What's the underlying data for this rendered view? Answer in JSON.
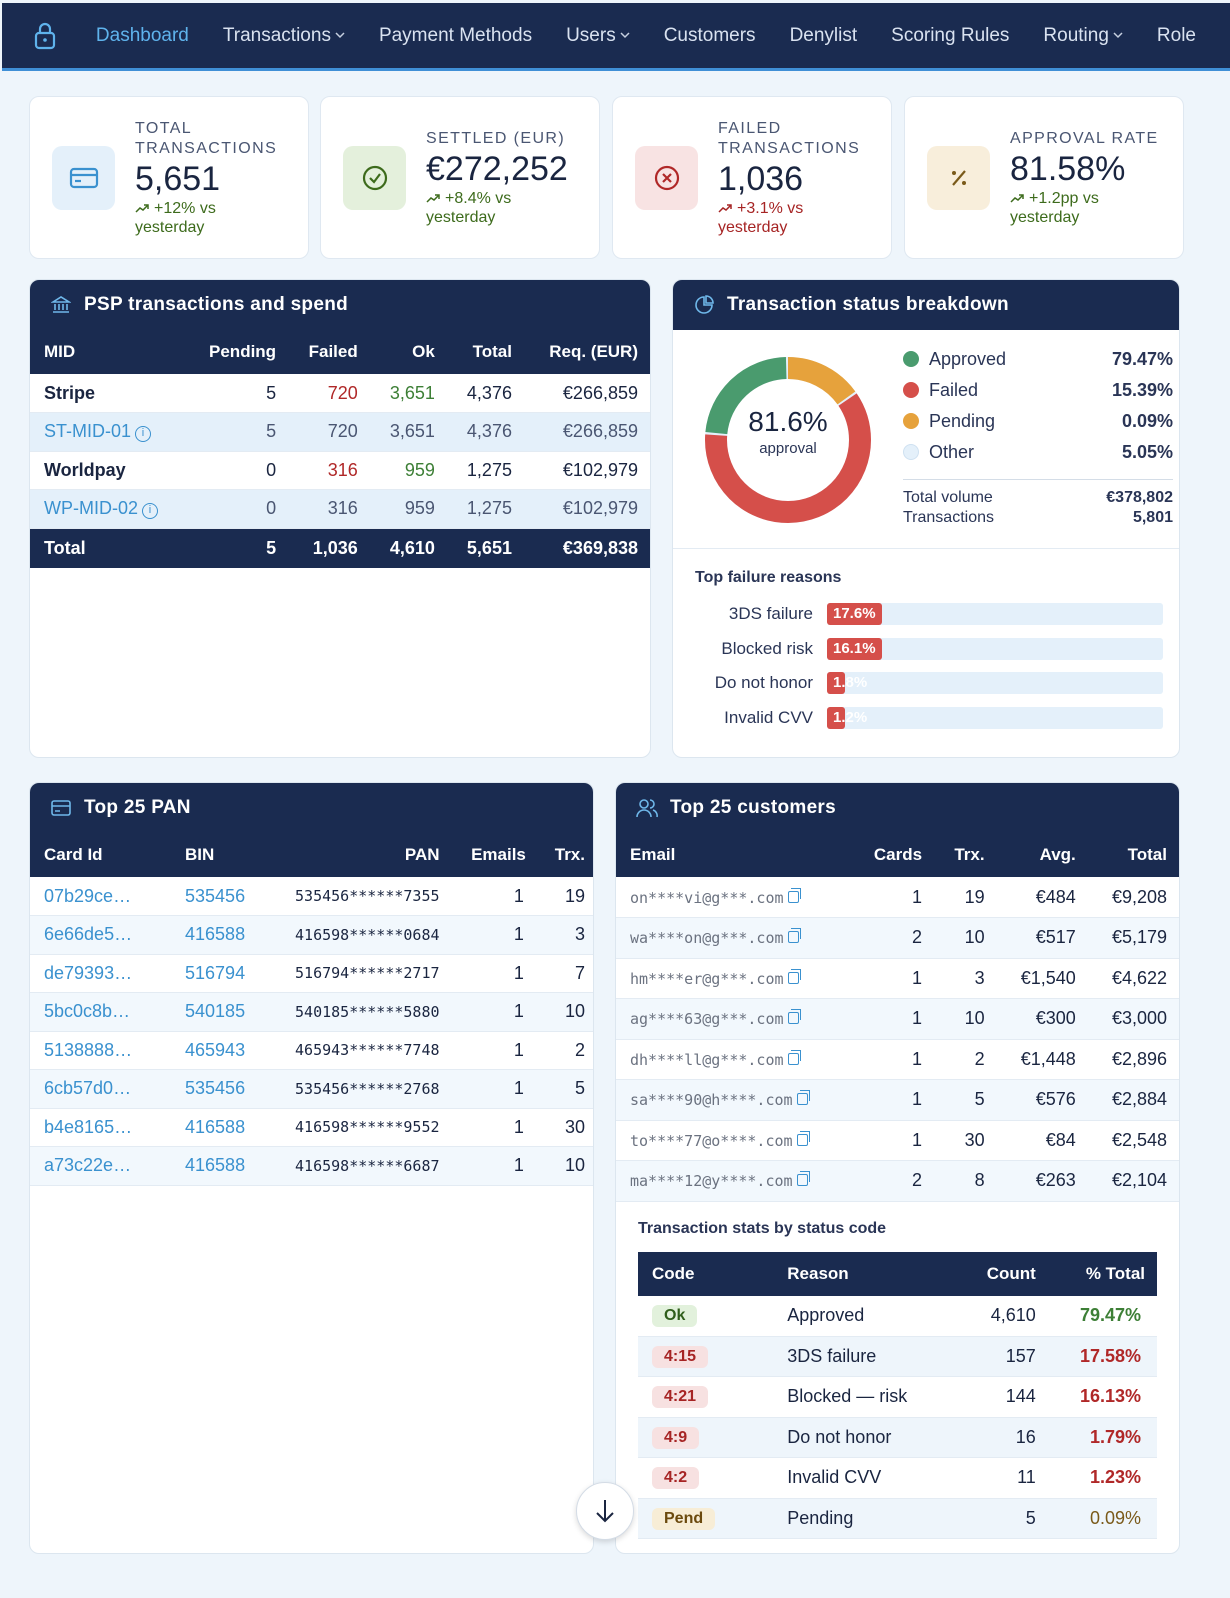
{
  "nav": {
    "items": [
      {
        "label": "Dashboard",
        "active": true,
        "dropdown": false
      },
      {
        "label": "Transactions",
        "active": false,
        "dropdown": true
      },
      {
        "label": "Payment Methods",
        "active": false,
        "dropdown": false
      },
      {
        "label": "Users",
        "active": false,
        "dropdown": true
      },
      {
        "label": "Customers",
        "active": false,
        "dropdown": false
      },
      {
        "label": "Denylist",
        "active": false,
        "dropdown": false
      },
      {
        "label": "Scoring Rules",
        "active": false,
        "dropdown": false
      },
      {
        "label": "Routing",
        "active": false,
        "dropdown": true
      },
      {
        "label": "Role",
        "active": false,
        "dropdown": false
      }
    ]
  },
  "kpis": [
    {
      "label_1": "TOTAL",
      "label_2": "TRANSACTIONS",
      "value": "5,651",
      "delta_1": "+12% vs",
      "delta_2": "yesterday",
      "icon": "credit-card-icon",
      "color": "#3a91cf",
      "bg": "#e4f0fa"
    },
    {
      "label_1": "SETTLED (EUR)",
      "value": "€272,252",
      "delta_1": "+8.4% vs",
      "delta_2": "yesterday",
      "icon": "check-circle-icon",
      "color": "#3d6b1c",
      "bg": "#e4f0dc"
    },
    {
      "label_1": "FAILED",
      "label_2": "TRANSACTIONS",
      "value": "1,036",
      "delta_1": "+3.1% vs",
      "delta_2": "yesterday",
      "icon": "x-circle-icon",
      "color": "#b02828",
      "bg": "#f8e3e3"
    },
    {
      "label_1": "APPROVAL RATE",
      "value": "81.58%",
      "delta_1": "+1.2pp vs",
      "delta_2": "yesterday",
      "icon": "percent-icon",
      "color": "#7a5a1a",
      "bg": "#f8eedb"
    }
  ],
  "psp": {
    "title": "PSP transactions and spend",
    "columns": [
      "MID",
      "Pending",
      "Failed",
      "Ok",
      "Total",
      "Req. (EUR)"
    ],
    "rows": [
      {
        "name": "Stripe",
        "pending": "5",
        "failed": "720",
        "ok": "3,651",
        "total": "4,376",
        "req": "€266,859"
      },
      {
        "name": "ST-MID-01",
        "pending": "5",
        "failed": "720",
        "ok": "3,651",
        "total": "4,376",
        "req": "€266,859"
      },
      {
        "name": "Worldpay",
        "pending": "0",
        "failed": "316",
        "ok": "959",
        "total": "1,275",
        "req": "€102,979"
      },
      {
        "name": "WP-MID-02",
        "pending": "0",
        "failed": "316",
        "ok": "959",
        "total": "1,275",
        "req": "€102,979"
      }
    ],
    "total": {
      "name": "Total",
      "pending": "5",
      "failed": "1,036",
      "ok": "4,610",
      "total": "5,651",
      "req": "€369,838"
    }
  },
  "status": {
    "title": "Transaction status breakdown",
    "donut_center": "81.6%",
    "donut_sub": "approval",
    "legend": [
      {
        "name": "Approved",
        "value": "79.47%",
        "color": "#4a9b6e",
        "pct": 79.47
      },
      {
        "name": "Failed",
        "value": "15.39%",
        "color": "#d54f4a",
        "pct": 15.39
      },
      {
        "name": "Pending",
        "value": "0.09%",
        "color": "#e6a23c",
        "pct": 0.09
      },
      {
        "name": "Other",
        "value": "5.05%",
        "color": "#e4f0fa",
        "pct": 5.05
      }
    ],
    "total_volume_label": "Total volume",
    "total_volume": "€378,802",
    "transactions_label": "Transactions",
    "transactions": "5,801",
    "failure_title": "Top failure reasons",
    "failures": [
      {
        "label": "3DS failure",
        "value": "17.6%",
        "pct": 17.6
      },
      {
        "label": "Blocked risk",
        "value": "16.1%",
        "pct": 16.1
      },
      {
        "label": "Do not honor",
        "value": "1.8%",
        "pct": 1.8
      },
      {
        "label": "Invalid CVV",
        "value": "1.2%",
        "pct": 1.2
      }
    ]
  },
  "pan": {
    "title": "Top 25 PAN",
    "columns": [
      "Card Id",
      "BIN",
      "PAN",
      "Emails",
      "Trx."
    ],
    "rows": [
      {
        "card": "07b29ce…",
        "bin": "535456",
        "pan": "535456******7355",
        "emails": "1",
        "trx": "19"
      },
      {
        "card": "6e66de5…",
        "bin": "416588",
        "pan": "416598******0684",
        "emails": "1",
        "trx": "3"
      },
      {
        "card": "de79393…",
        "bin": "516794",
        "pan": "516794******2717",
        "emails": "1",
        "trx": "7"
      },
      {
        "card": "5bc0c8b…",
        "bin": "540185",
        "pan": "540185******5880",
        "emails": "1",
        "trx": "10"
      },
      {
        "card": "5138888…",
        "bin": "465943",
        "pan": "465943******7748",
        "emails": "1",
        "trx": "2"
      },
      {
        "card": "6cb57d0…",
        "bin": "535456",
        "pan": "535456******2768",
        "emails": "1",
        "trx": "5"
      },
      {
        "card": "b4e8165…",
        "bin": "416588",
        "pan": "416598******9552",
        "emails": "1",
        "trx": "30"
      },
      {
        "card": "a73c22e…",
        "bin": "416588",
        "pan": "416598******6687",
        "emails": "1",
        "trx": "10"
      }
    ]
  },
  "customers": {
    "title": "Top 25 customers",
    "columns": [
      "Email",
      "Cards",
      "Trx.",
      "Avg.",
      "Total"
    ],
    "rows": [
      {
        "email": "on****vi@g***.com",
        "cards": "1",
        "trx": "19",
        "avg": "€484",
        "total": "€9,208"
      },
      {
        "email": "wa****on@g***.com",
        "cards": "2",
        "trx": "10",
        "avg": "€517",
        "total": "€5,179"
      },
      {
        "email": "hm****er@g***.com",
        "cards": "1",
        "trx": "3",
        "avg": "€1,540",
        "total": "€4,622"
      },
      {
        "email": "ag****63@g***.com",
        "cards": "1",
        "trx": "10",
        "avg": "€300",
        "total": "€3,000"
      },
      {
        "email": "dh****ll@g***.com",
        "cards": "1",
        "trx": "2",
        "avg": "€1,448",
        "total": "€2,896"
      },
      {
        "email": "sa****90@h****.com",
        "cards": "1",
        "trx": "5",
        "avg": "€576",
        "total": "€2,884"
      },
      {
        "email": "to****77@o****.com",
        "cards": "1",
        "trx": "30",
        "avg": "€84",
        "total": "€2,548"
      },
      {
        "email": "ma****12@y****.com",
        "cards": "2",
        "trx": "8",
        "avg": "€263",
        "total": "€2,104"
      }
    ],
    "codes_title": "Transaction stats by status code",
    "codes_columns": [
      "Code",
      "Reason",
      "Count",
      "% Total"
    ],
    "codes": [
      {
        "code": "Ok",
        "reason": "Approved",
        "count": "4,610",
        "pct": "79.47%",
        "kind": "ok"
      },
      {
        "code": "4:15",
        "reason": "3DS failure",
        "count": "157",
        "pct": "17.58%",
        "kind": "err"
      },
      {
        "code": "4:21",
        "reason": "Blocked — risk",
        "count": "144",
        "pct": "16.13%",
        "kind": "err"
      },
      {
        "code": "4:9",
        "reason": "Do not honor",
        "count": "16",
        "pct": "1.79%",
        "kind": "err"
      },
      {
        "code": "4:2",
        "reason": "Invalid CVV",
        "count": "11",
        "pct": "1.23%",
        "kind": "err"
      },
      {
        "code": "Pend",
        "reason": "Pending",
        "count": "5",
        "pct": "0.09%",
        "kind": "pend"
      }
    ]
  }
}
